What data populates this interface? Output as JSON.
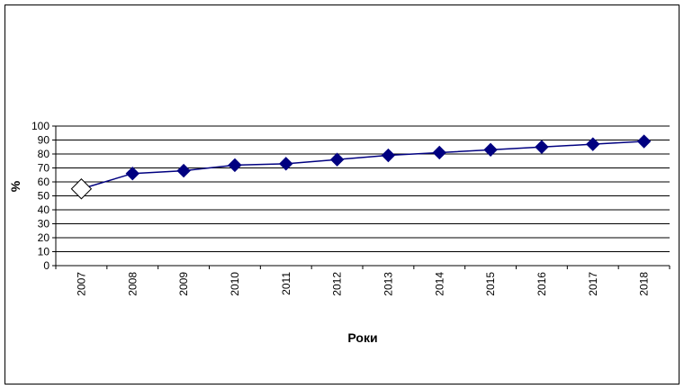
{
  "chart_data": {
    "type": "line",
    "title": "",
    "xlabel": "Роки",
    "ylabel": "%",
    "ylim": [
      0,
      100
    ],
    "yticks": [
      0,
      10,
      20,
      30,
      40,
      50,
      60,
      70,
      80,
      90,
      100
    ],
    "grid": true,
    "legend": "none",
    "categories": [
      "2007",
      "2008",
      "2009",
      "2010",
      "2011",
      "2012",
      "2013",
      "2014",
      "2015",
      "2016",
      "2017",
      "2018"
    ],
    "series": [
      {
        "values": [
          55,
          66,
          68,
          72,
          73,
          76,
          79,
          81,
          83,
          85,
          87,
          89
        ],
        "line_color": "#000080",
        "marker": "diamond",
        "marker_color": "#000080",
        "first_marker_fill": "#ffffff"
      }
    ]
  }
}
